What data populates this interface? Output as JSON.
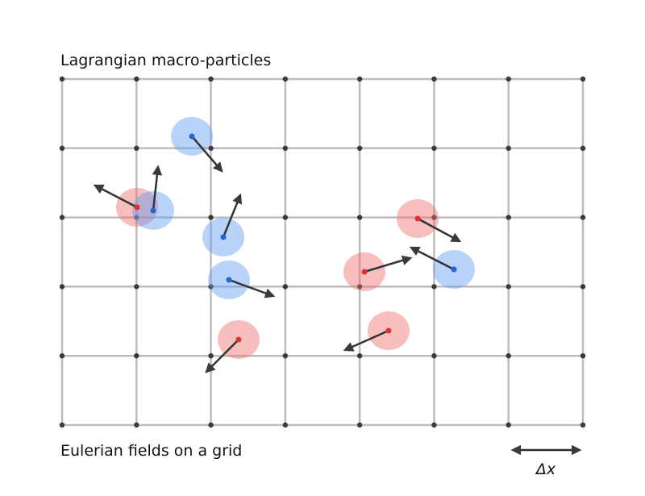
{
  "title": "Lagrangian macro-particles",
  "caption": "Eulerian fields on a grid",
  "scale_label": "Δx"
}
